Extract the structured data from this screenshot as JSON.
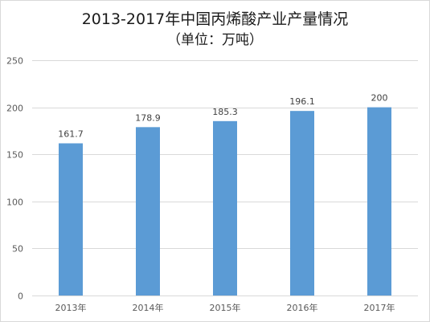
{
  "chart_data": {
    "type": "bar",
    "title": "2013-2017年中国丙烯酸产业产量情况",
    "subtitle": "（单位：万吨）",
    "categories": [
      "2013年",
      "2014年",
      "2015年",
      "2016年",
      "2017年"
    ],
    "values": [
      161.7,
      178.9,
      185.3,
      196.1,
      200
    ],
    "data_labels": [
      "161.7",
      "178.9",
      "185.3",
      "196.1",
      "200"
    ],
    "y_ticks": [
      0,
      50,
      100,
      150,
      200,
      250
    ],
    "ylim": [
      0,
      250
    ],
    "xlabel": "",
    "ylabel": "",
    "grid": true,
    "bar_color": "#5b9bd5",
    "grid_color": "#d9d9d9"
  }
}
